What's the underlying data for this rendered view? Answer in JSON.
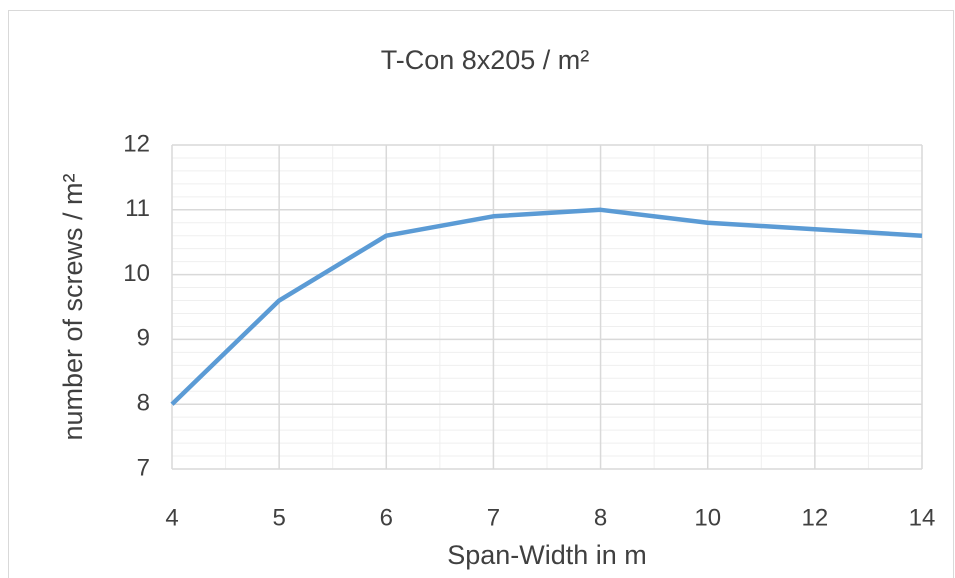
{
  "chart_data": {
    "type": "line",
    "title": "T-Con 8x205 / m²",
    "x_label": "Span-Width in m",
    "y_label": "number of screws / m²",
    "categories": [
      "4",
      "5",
      "6",
      "7",
      "8",
      "10",
      "12",
      "14"
    ],
    "series": [
      {
        "name": "T-Con 8x205",
        "color": "#5b9bd5",
        "values": [
          8,
          9.6,
          10.6,
          10.9,
          11.0,
          10.8,
          10.7,
          10.6
        ]
      }
    ],
    "ylim": [
      7,
      12
    ],
    "yticks": [
      7,
      8,
      9,
      10,
      11,
      12
    ],
    "grid": true,
    "minor_grid": true
  }
}
